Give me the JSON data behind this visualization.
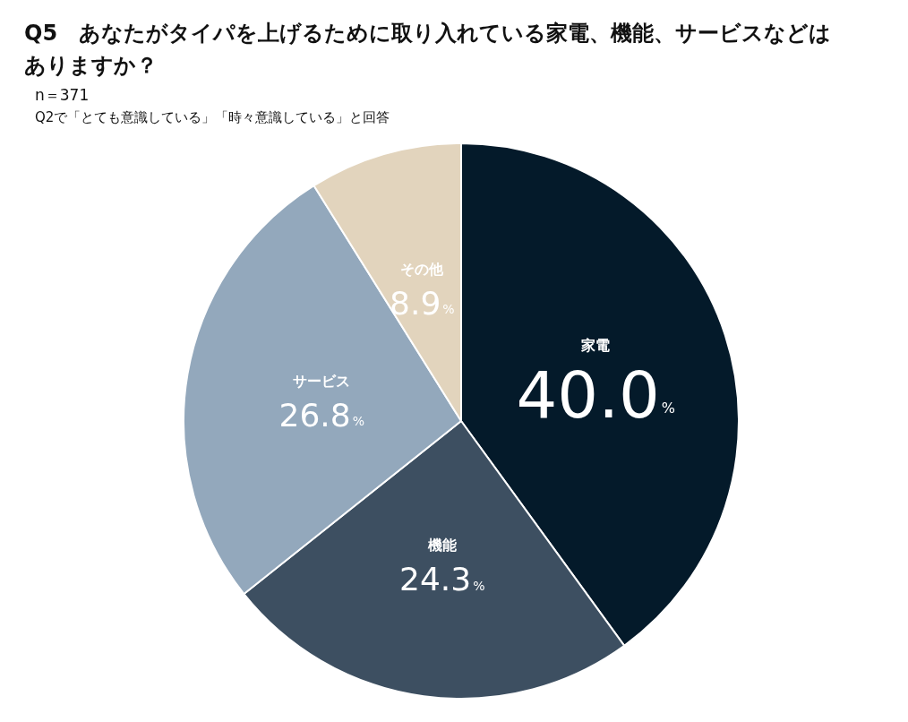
{
  "chart_data": {
    "type": "pie",
    "title": "Q5　あなたがタイパを上げるために取り入れている家電、機能、サービスなどはありますか？",
    "subtitle": "n＝371",
    "annotations": [
      "Q2で「とても意識している」「時々意識している」と回答"
    ],
    "categories": [
      "家電",
      "機能",
      "サービス",
      "その他"
    ],
    "values": [
      40.0,
      24.3,
      26.8,
      8.9
    ],
    "colors": [
      "#041a2a",
      "#3d4f61",
      "#93a8bc",
      "#e2d4bd"
    ],
    "value_labels": [
      "40.0%",
      "24.3%",
      "26.8%",
      "8.9%"
    ],
    "legend": false
  }
}
